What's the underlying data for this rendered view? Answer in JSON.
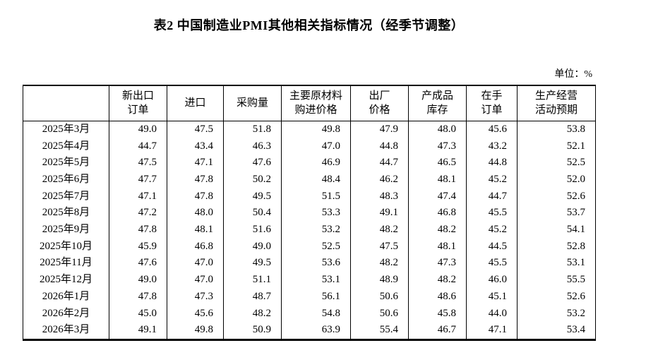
{
  "title": "表2 中国制造业PMI其他相关指标情况（经季节调整）",
  "unit_label": "单位：%",
  "colors": {
    "text": "#000000",
    "background": "#ffffff",
    "border": "#000000"
  },
  "chart_data": {
    "type": "table",
    "title": "表2 中国制造业PMI其他相关指标情况（经季节调整）",
    "unit": "%",
    "columns": [
      "",
      "新出口\n订单",
      "进口",
      "采购量",
      "主要原材料\n购进价格",
      "出厂\n价格",
      "产成品\n库存",
      "在手\n订单",
      "生产经营\n活动预期"
    ],
    "rows": [
      {
        "label": "2025年3月",
        "values": [
          "49.0",
          "47.5",
          "51.8",
          "49.8",
          "47.9",
          "48.0",
          "45.6",
          "53.8"
        ]
      },
      {
        "label": "2025年4月",
        "values": [
          "44.7",
          "43.4",
          "46.3",
          "47.0",
          "44.8",
          "47.3",
          "43.2",
          "52.1"
        ]
      },
      {
        "label": "2025年5月",
        "values": [
          "47.5",
          "47.1",
          "47.6",
          "46.9",
          "44.7",
          "46.5",
          "44.8",
          "52.5"
        ]
      },
      {
        "label": "2025年6月",
        "values": [
          "47.7",
          "47.8",
          "50.2",
          "48.4",
          "46.2",
          "48.1",
          "45.2",
          "52.0"
        ]
      },
      {
        "label": "2025年7月",
        "values": [
          "47.1",
          "47.8",
          "49.5",
          "51.5",
          "48.3",
          "47.4",
          "44.7",
          "52.6"
        ]
      },
      {
        "label": "2025年8月",
        "values": [
          "47.2",
          "48.0",
          "50.4",
          "53.3",
          "49.1",
          "46.8",
          "45.5",
          "53.7"
        ]
      },
      {
        "label": "2025年9月",
        "values": [
          "47.8",
          "48.1",
          "51.6",
          "53.2",
          "48.2",
          "48.2",
          "45.2",
          "54.1"
        ]
      },
      {
        "label": "2025年10月",
        "values": [
          "45.9",
          "46.8",
          "49.0",
          "52.5",
          "47.5",
          "48.1",
          "44.5",
          "52.8"
        ]
      },
      {
        "label": "2025年11月",
        "values": [
          "47.6",
          "47.0",
          "49.5",
          "53.6",
          "48.2",
          "47.3",
          "45.5",
          "53.1"
        ]
      },
      {
        "label": "2025年12月",
        "values": [
          "49.0",
          "47.0",
          "51.1",
          "53.1",
          "48.9",
          "48.2",
          "46.0",
          "55.5"
        ]
      },
      {
        "label": "2026年1月",
        "values": [
          "47.8",
          "47.3",
          "48.7",
          "56.1",
          "50.6",
          "48.6",
          "45.1",
          "52.6"
        ]
      },
      {
        "label": "2026年2月",
        "values": [
          "45.0",
          "45.6",
          "48.2",
          "54.8",
          "50.6",
          "45.8",
          "44.0",
          "53.2"
        ]
      },
      {
        "label": "2026年3月",
        "values": [
          "49.1",
          "49.8",
          "50.9",
          "63.9",
          "55.4",
          "46.7",
          "47.1",
          "53.4"
        ]
      }
    ]
  }
}
